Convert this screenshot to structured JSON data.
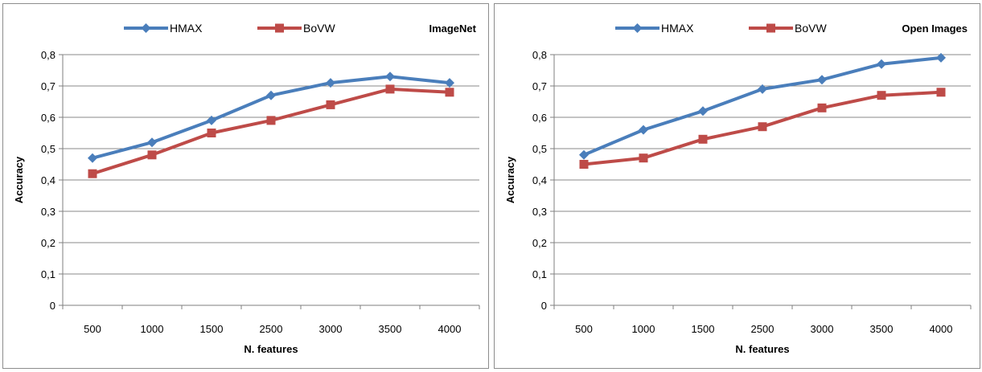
{
  "chart_data": [
    {
      "type": "line",
      "title": "ImageNet",
      "xlabel": "N. features",
      "ylabel": "Accuracy",
      "categories": [
        "500",
        "1000",
        "1500",
        "2500",
        "3000",
        "3500",
        "4000"
      ],
      "y_ticks": [
        "0",
        "0,1",
        "0,2",
        "0,3",
        "0,4",
        "0,5",
        "0,6",
        "0,7",
        "0,8"
      ],
      "ylim": [
        0,
        0.8
      ],
      "grid": true,
      "legend": "top",
      "series": [
        {
          "name": "HMAX",
          "color": "#4a7ebb",
          "marker": "diamond",
          "values": [
            0.47,
            0.52,
            0.59,
            0.67,
            0.71,
            0.73,
            0.71
          ]
        },
        {
          "name": "BoVW",
          "color": "#be4b48",
          "marker": "square",
          "values": [
            0.42,
            0.48,
            0.55,
            0.59,
            0.64,
            0.69,
            0.68
          ]
        }
      ]
    },
    {
      "type": "line",
      "title": "Open Images",
      "xlabel": "N. features",
      "ylabel": "Accuracy",
      "categories": [
        "500",
        "1000",
        "1500",
        "2500",
        "3000",
        "3500",
        "4000"
      ],
      "y_ticks": [
        "0",
        "0,1",
        "0,2",
        "0,3",
        "0,4",
        "0,5",
        "0,6",
        "0,7",
        "0,8"
      ],
      "ylim": [
        0,
        0.8
      ],
      "grid": true,
      "legend": "top",
      "series": [
        {
          "name": "HMAX",
          "color": "#4a7ebb",
          "marker": "diamond",
          "values": [
            0.48,
            0.56,
            0.62,
            0.69,
            0.72,
            0.77,
            0.79
          ]
        },
        {
          "name": "BoVW",
          "color": "#be4b48",
          "marker": "square",
          "values": [
            0.45,
            0.47,
            0.53,
            0.57,
            0.63,
            0.67,
            0.68
          ]
        }
      ]
    }
  ]
}
